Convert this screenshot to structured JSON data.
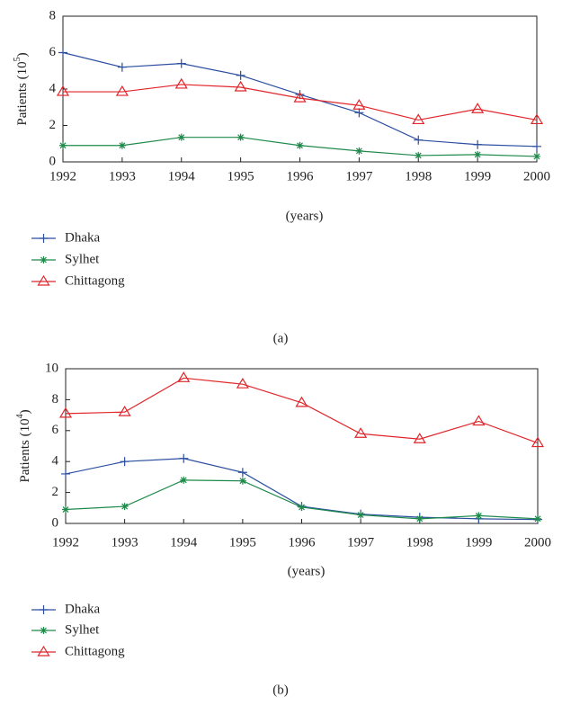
{
  "chart_data": [
    {
      "type": "line",
      "ylabel": [
        "Patients (10",
        "5",
        ")"
      ],
      "xlabel": "(years)",
      "caption": "(a)",
      "x": [
        1992,
        1993,
        1994,
        1995,
        1996,
        1997,
        1998,
        1999,
        2000
      ],
      "xlim": [
        1992,
        2000
      ],
      "xticks": [
        1992,
        1993,
        1994,
        1995,
        1996,
        1997,
        1998,
        1999,
        2000
      ],
      "ylim": [
        0,
        8
      ],
      "yticks": [
        0,
        2,
        4,
        6,
        8
      ],
      "series": [
        {
          "name": "Dhaka",
          "color": "#2b4ea0",
          "marker": "plus",
          "values": [
            6.0,
            5.2,
            5.4,
            4.75,
            3.7,
            2.7,
            1.2,
            0.95,
            0.85
          ]
        },
        {
          "name": "Sylhet",
          "color": "#1e8a4a",
          "marker": "star",
          "values": [
            0.9,
            0.9,
            1.35,
            1.35,
            0.9,
            0.6,
            0.35,
            0.4,
            0.3
          ]
        },
        {
          "name": "Chittagong",
          "color": "#e0262b",
          "marker": "triangle",
          "values": [
            3.85,
            3.85,
            4.25,
            4.1,
            3.5,
            3.1,
            2.3,
            2.9,
            2.3
          ]
        }
      ]
    },
    {
      "type": "line",
      "ylabel": [
        "Patients (10",
        "4",
        ")"
      ],
      "xlabel": "(years)",
      "caption": "(b)",
      "x": [
        1992,
        1993,
        1994,
        1995,
        1996,
        1997,
        1998,
        1999,
        2000
      ],
      "xlim": [
        1992,
        2000
      ],
      "xticks": [
        1992,
        1993,
        1994,
        1995,
        1996,
        1997,
        1998,
        1999,
        2000
      ],
      "ylim": [
        0,
        10
      ],
      "yticks": [
        0,
        2,
        4,
        6,
        8,
        10
      ],
      "series": [
        {
          "name": "Dhaka",
          "color": "#2b4ea0",
          "marker": "plus",
          "values": [
            3.2,
            4.0,
            4.2,
            3.3,
            1.1,
            0.6,
            0.4,
            0.3,
            0.25
          ]
        },
        {
          "name": "Sylhet",
          "color": "#1e8a4a",
          "marker": "star",
          "values": [
            0.9,
            1.1,
            2.8,
            2.75,
            1.05,
            0.55,
            0.3,
            0.5,
            0.3
          ]
        },
        {
          "name": "Chittagong",
          "color": "#e0262b",
          "marker": "triangle",
          "values": [
            7.1,
            7.2,
            9.4,
            9.0,
            7.8,
            5.8,
            5.45,
            6.6,
            5.2
          ]
        }
      ]
    }
  ]
}
